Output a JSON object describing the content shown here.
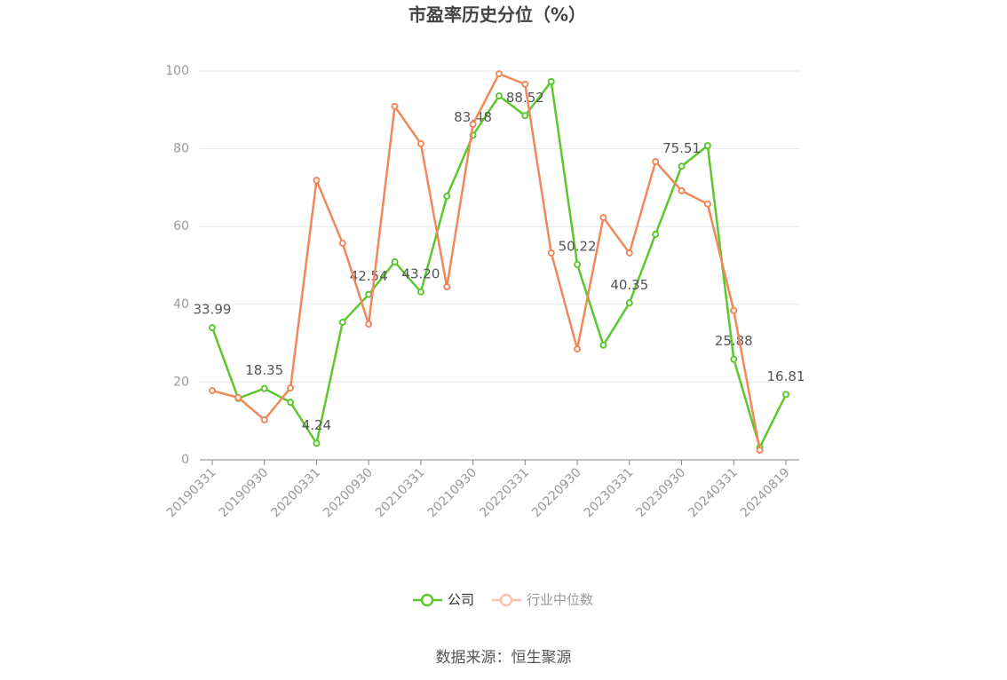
{
  "chart_data": {
    "type": "line",
    "title": "市盈率历史分位（%）",
    "source": "数据来源：恒生聚源",
    "categories": [
      "20190331",
      null,
      "20190930",
      null,
      "20200331",
      null,
      "20200930",
      null,
      "20210331",
      null,
      "20210930",
      null,
      "20220331",
      null,
      "20220930",
      null,
      "20230331",
      null,
      "20230930",
      null,
      "20240331",
      null,
      "20240819"
    ],
    "series": [
      {
        "name": "公司",
        "color": "#5cc72e",
        "values": [
          33.99,
          15.8,
          18.35,
          14.8,
          4.24,
          35.4,
          42.54,
          50.9,
          43.2,
          67.8,
          83.48,
          93.6,
          88.52,
          97.3,
          50.22,
          29.5,
          40.35,
          58.0,
          75.51,
          80.8,
          25.88,
          3.2,
          16.81
        ],
        "value_labels": [
          "33.99",
          null,
          "18.35",
          null,
          "4.24",
          null,
          "42.54",
          null,
          "43.20",
          null,
          "83.48",
          null,
          "88.52",
          null,
          "50.22",
          null,
          "40.35",
          null,
          "75.51",
          null,
          "25.88",
          null,
          "16.81"
        ]
      },
      {
        "name": "行业中位数",
        "color": "#f0885a",
        "values": [
          17.8,
          16.0,
          10.3,
          18.5,
          71.9,
          55.7,
          34.9,
          90.9,
          81.3,
          44.5,
          86.3,
          99.3,
          96.6,
          53.2,
          28.5,
          62.3,
          53.2,
          76.7,
          69.2,
          65.8,
          38.4,
          2.5,
          null
        ]
      }
    ],
    "ylim": [
      0,
      100
    ],
    "yticks": [
      0,
      20,
      40,
      60,
      80,
      100
    ],
    "grid": true,
    "legend": "bottom"
  }
}
